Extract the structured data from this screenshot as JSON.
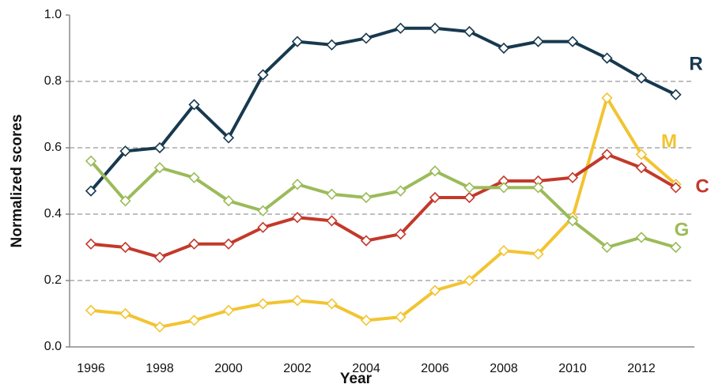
{
  "chart_data": {
    "type": "line",
    "x_title": "Year",
    "y_title": "Normalized scores",
    "categories": [
      "1996",
      null,
      "1998",
      null,
      "2000",
      null,
      "2002",
      null,
      "2004",
      null,
      "2006",
      null,
      "2008",
      null,
      "2010",
      null,
      "2012",
      null
    ],
    "ylim": [
      0,
      1
    ],
    "yticks": [
      {
        "value": 0,
        "label": "0.0"
      },
      0.2,
      0.4,
      0.6,
      0.8,
      {
        "value": 1,
        "label": "1.0"
      }
    ],
    "grid": true,
    "series": [
      {
        "name": "R",
        "color": "#17394f",
        "values": [
          0.47,
          0.59,
          0.6,
          0.73,
          0.63,
          0.82,
          0.92,
          0.91,
          0.93,
          0.96,
          0.96,
          0.95,
          0.9,
          0.92,
          0.92,
          0.87,
          0.81,
          0.76
        ]
      },
      {
        "name": "M",
        "color": "#f2c431",
        "values": [
          0.11,
          0.1,
          0.06,
          0.08,
          0.11,
          0.13,
          0.14,
          0.13,
          0.08,
          0.09,
          0.17,
          0.2,
          0.29,
          0.28,
          0.39,
          0.75,
          0.58,
          0.49
        ]
      },
      {
        "name": "C",
        "color": "#c3392a",
        "values": [
          0.31,
          0.3,
          0.27,
          0.31,
          0.31,
          0.36,
          0.39,
          0.38,
          0.32,
          0.34,
          0.45,
          0.45,
          0.5,
          0.5,
          0.51,
          0.58,
          0.54,
          0.48
        ]
      },
      {
        "name": "G",
        "color": "#9bbb59",
        "values": [
          0.56,
          0.44,
          0.54,
          0.51,
          0.44,
          0.41,
          0.49,
          0.46,
          0.45,
          0.47,
          0.53,
          0.48,
          0.48,
          0.48,
          0.38,
          0.3,
          0.33,
          0.3
        ]
      }
    ]
  }
}
